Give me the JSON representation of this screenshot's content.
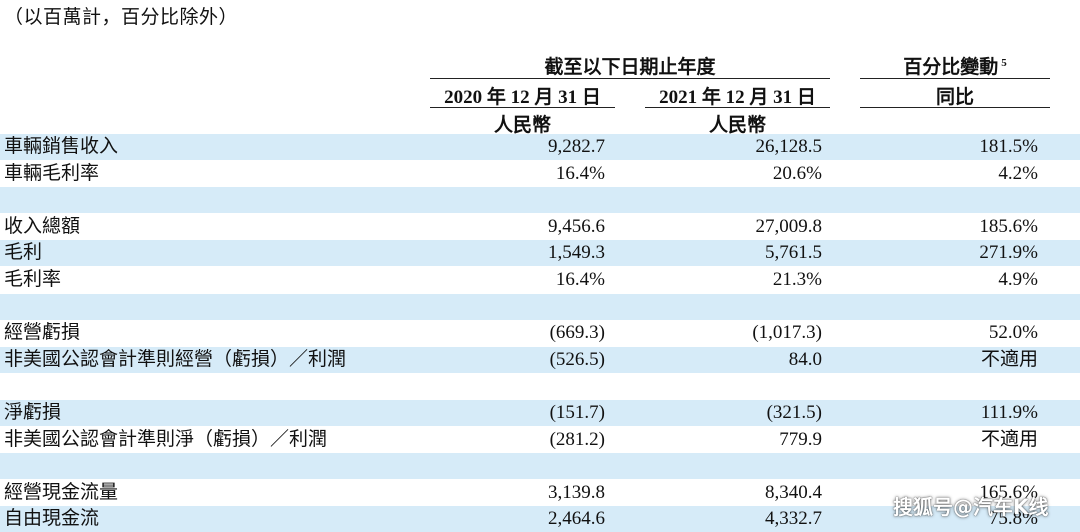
{
  "note": "（以百萬計，百分比除外）",
  "header": {
    "period_group": "截至以下日期止年度",
    "change_group": "百分比變動",
    "change_footnote": "5",
    "col_2020": "2020 年 12 月 31 日",
    "col_2021": "2021 年 12 月 31 日",
    "yoy": "同比",
    "currency": "人民幣"
  },
  "rows": [
    {
      "label": "車輛銷售收入",
      "v2020": "9,282.7",
      "v2021": "26,128.5",
      "change": "181.5%",
      "shaded": true
    },
    {
      "label": "車輛毛利率",
      "v2020": "16.4%",
      "v2021": "20.6%",
      "change": "4.2%",
      "shaded": false
    },
    {
      "label": "",
      "v2020": "",
      "v2021": "",
      "change": "",
      "shaded": true
    },
    {
      "label": "收入總額",
      "v2020": "9,456.6",
      "v2021": "27,009.8",
      "change": "185.6%",
      "shaded": false
    },
    {
      "label": "毛利",
      "v2020": "1,549.3",
      "v2021": "5,761.5",
      "change": "271.9%",
      "shaded": true
    },
    {
      "label": "毛利率",
      "v2020": "16.4%",
      "v2021": "21.3%",
      "change": "4.9%",
      "shaded": false
    },
    {
      "label": "",
      "v2020": "",
      "v2021": "",
      "change": "",
      "shaded": true
    },
    {
      "label": "經營虧損",
      "v2020": "(669.3)",
      "v2021": "(1,017.3)",
      "change": "52.0%",
      "shaded": false
    },
    {
      "label": "非美國公認會計準則經營（虧損）／利潤",
      "v2020": "(526.5)",
      "v2021": "84.0",
      "change": "不適用",
      "shaded": true
    },
    {
      "label": "",
      "v2020": "",
      "v2021": "",
      "change": "",
      "shaded": false
    },
    {
      "label": "淨虧損",
      "v2020": "(151.7)",
      "v2021": "(321.5)",
      "change": "111.9%",
      "shaded": true
    },
    {
      "label": "非美國公認會計準則淨（虧損）／利潤",
      "v2020": "(281.2)",
      "v2021": "779.9",
      "change": "不適用",
      "shaded": false
    },
    {
      "label": "",
      "v2020": "",
      "v2021": "",
      "change": "",
      "shaded": true
    },
    {
      "label": "經營現金流量",
      "v2020": "3,139.8",
      "v2021": "8,340.4",
      "change": "165.6%",
      "shaded": false
    },
    {
      "label": "自由現金流",
      "v2020": "2,464.6",
      "v2021": "4,332.7",
      "change": "75.8%",
      "shaded": true
    }
  ],
  "watermark": "搜狐号@汽车K线"
}
